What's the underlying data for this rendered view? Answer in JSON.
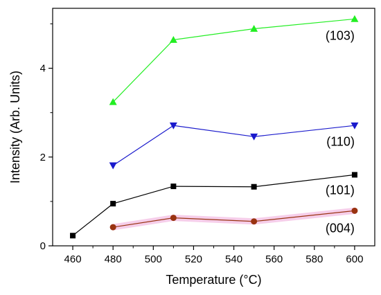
{
  "chart_data": {
    "type": "line",
    "xlabel": "Temperature (°C)",
    "ylabel": "Intensity (Arb. Units)",
    "xlim": [
      450,
      610
    ],
    "ylim": [
      0,
      5.35
    ],
    "xticks": [
      460,
      480,
      500,
      520,
      540,
      560,
      580,
      600
    ],
    "yticks": [
      0,
      2,
      4
    ],
    "grid": false,
    "series": [
      {
        "name": "(103)",
        "color": "#22ee22",
        "marker": "triangle-up",
        "x": [
          480,
          510,
          550,
          600
        ],
        "y": [
          3.24,
          4.64,
          4.89,
          5.11
        ]
      },
      {
        "name": "(110)",
        "color": "#1a1acc",
        "marker": "triangle-down",
        "x": [
          480,
          510,
          550,
          600
        ],
        "y": [
          1.81,
          2.71,
          2.46,
          2.71
        ]
      },
      {
        "name": "(101)",
        "color": "#000000",
        "marker": "square",
        "x": [
          460,
          480,
          510,
          550,
          600
        ],
        "y": [
          0.23,
          0.95,
          1.34,
          1.33,
          1.6
        ]
      },
      {
        "name": "(004)",
        "color": "#993311",
        "marker": "circle",
        "highlight": "#f5c6e6",
        "x": [
          480,
          510,
          550,
          600
        ],
        "y": [
          0.42,
          0.63,
          0.55,
          0.79
        ]
      }
    ]
  }
}
